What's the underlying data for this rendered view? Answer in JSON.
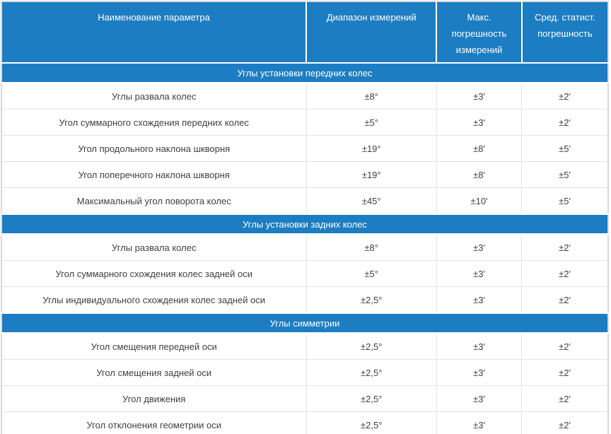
{
  "table": {
    "accent_color": "#1d7dc2",
    "grid_color": "#e3e3e3",
    "outer_border_color": "#d9d9d9",
    "columns": [
      "Наименование параметра",
      "Диапазон измерений",
      "Макс. погрешность измерений",
      "Сред. статист. погрешность"
    ],
    "sections": [
      {
        "title": "Углы установки передних колес",
        "rows": [
          [
            "Углы развала колес",
            "±8°",
            "±3'",
            "±2'"
          ],
          [
            "Угол суммарного схождения передних колес",
            "±5°",
            "±3'",
            "±2'"
          ],
          [
            "Угол продольного наклона шкворня",
            "±19°",
            "±8'",
            "±5'"
          ],
          [
            "Угол поперечного наклона шкворня",
            "±19°",
            "±8'",
            "±5'"
          ],
          [
            "Максимальный угол поворота колес",
            "±45°",
            "±10'",
            "±5'"
          ]
        ]
      },
      {
        "title": "Углы установки задних колес",
        "rows": [
          [
            "Углы развала колес",
            "±8°",
            "±3'",
            "±2'"
          ],
          [
            "Угол суммарного схождения колес задней оси",
            "±5°",
            "±3'",
            "±2'"
          ],
          [
            "Углы индивидуального схождения колес задней оси",
            "±2,5°",
            "±3'",
            "±2'"
          ]
        ]
      },
      {
        "title": "Углы симметрии",
        "rows": [
          [
            "Угол смещения передней оси",
            "±2,5°",
            "±3'",
            "±2'"
          ],
          [
            "Угол смещения задней оси",
            "±2,5°",
            "±3'",
            "±2'"
          ],
          [
            "Угол движения",
            "±2,5°",
            "±3'",
            "±2'"
          ],
          [
            "Угол отклонения геометрии оси",
            "±2,5°",
            "±3'",
            "±2'"
          ]
        ]
      }
    ]
  }
}
